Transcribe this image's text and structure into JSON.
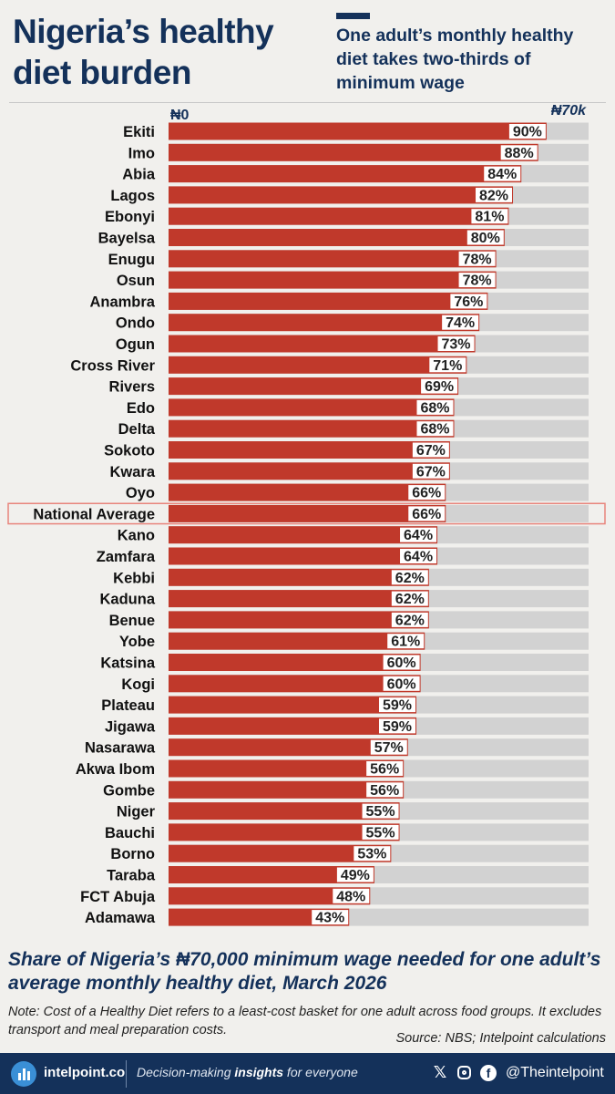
{
  "header": {
    "title": "Nigeria’s healthy diet burden",
    "subtitle": "One adult’s monthly healthy diet takes two-thirds of minimum wage"
  },
  "chart_data": {
    "type": "bar",
    "orientation": "horizontal",
    "x_tick_labels": [
      "₦0",
      "₦70k"
    ],
    "xlim": [
      0,
      100
    ],
    "highlight_category": "National Average",
    "colors": {
      "bar": "#c0392b",
      "track": "#d2d2d2",
      "highlight_border": "#e8847c"
    },
    "categories": [
      "Ekiti",
      "Imo",
      "Abia",
      "Lagos",
      "Ebonyi",
      "Bayelsa",
      "Enugu",
      "Osun",
      "Anambra",
      "Ondo",
      "Ogun",
      "Cross River",
      "Rivers",
      "Edo",
      "Delta",
      "Sokoto",
      "Kwara",
      "Oyo",
      "National Average",
      "Kano",
      "Zamfara",
      "Kebbi",
      "Kaduna",
      "Benue",
      "Yobe",
      "Katsina",
      "Kogi",
      "Plateau",
      "Jigawa",
      "Nasarawa",
      "Akwa Ibom",
      "Gombe",
      "Niger",
      "Bauchi",
      "Borno",
      "Taraba",
      "FCT Abuja",
      "Adamawa"
    ],
    "values": [
      90,
      88,
      84,
      82,
      81,
      80,
      78,
      78,
      76,
      74,
      73,
      71,
      69,
      68,
      68,
      67,
      67,
      66,
      66,
      64,
      64,
      62,
      62,
      62,
      61,
      60,
      60,
      59,
      59,
      57,
      56,
      56,
      55,
      55,
      53,
      49,
      48,
      43
    ],
    "value_labels": [
      "90%",
      "88%",
      "84%",
      "82%",
      "81%",
      "80%",
      "78%",
      "78%",
      "76%",
      "74%",
      "73%",
      "71%",
      "69%",
      "68%",
      "68%",
      "67%",
      "67%",
      "66%",
      "66%",
      "64%",
      "64%",
      "62%",
      "62%",
      "62%",
      "61%",
      "60%",
      "60%",
      "59%",
      "59%",
      "57%",
      "56%",
      "56%",
      "55%",
      "55%",
      "53%",
      "49%",
      "48%",
      "43%"
    ]
  },
  "caption": "Share of Nigeria’s ₦70,000 minimum wage needed for one adult’s average monthly healthy diet, March 2026",
  "note": "Note: Cost of a Healthy Diet refers to a least-cost basket for one adult across food groups. It excludes transport and meal preparation costs.",
  "source": "Source: NBS; Intelpoint calculations",
  "footer": {
    "brand": "intelpoint.co",
    "tagline_pre": "Decision-making ",
    "tagline_bold": "insights",
    "tagline_post": " for everyone",
    "handle": "@Theintelpoint",
    "icons": [
      "bar-chart-logo-icon",
      "x-icon",
      "instagram-icon",
      "facebook-icon"
    ]
  }
}
